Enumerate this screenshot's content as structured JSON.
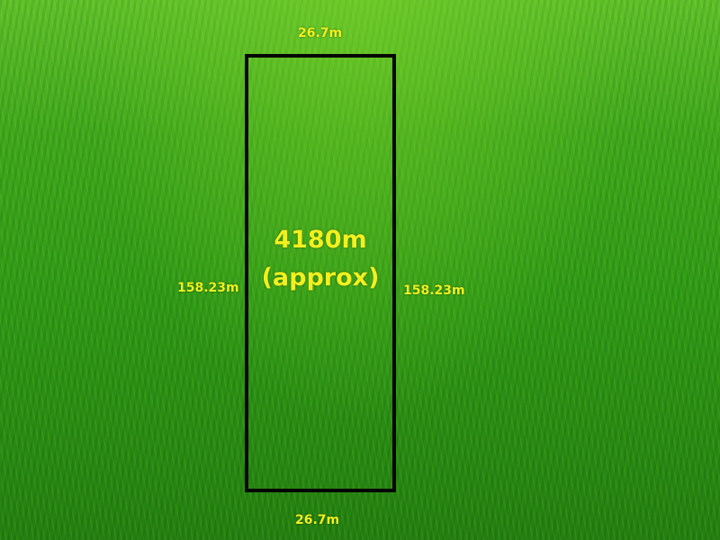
{
  "plot": {
    "area_label": "4180m",
    "area_note": "(approx)",
    "top_width": "26.7m",
    "bottom_width": "26.7m",
    "left_length": "158.23m",
    "right_length": "158.23m"
  },
  "colors": {
    "label": "#f2f01e",
    "outline": "#050505",
    "grass": "#2f9a16"
  }
}
